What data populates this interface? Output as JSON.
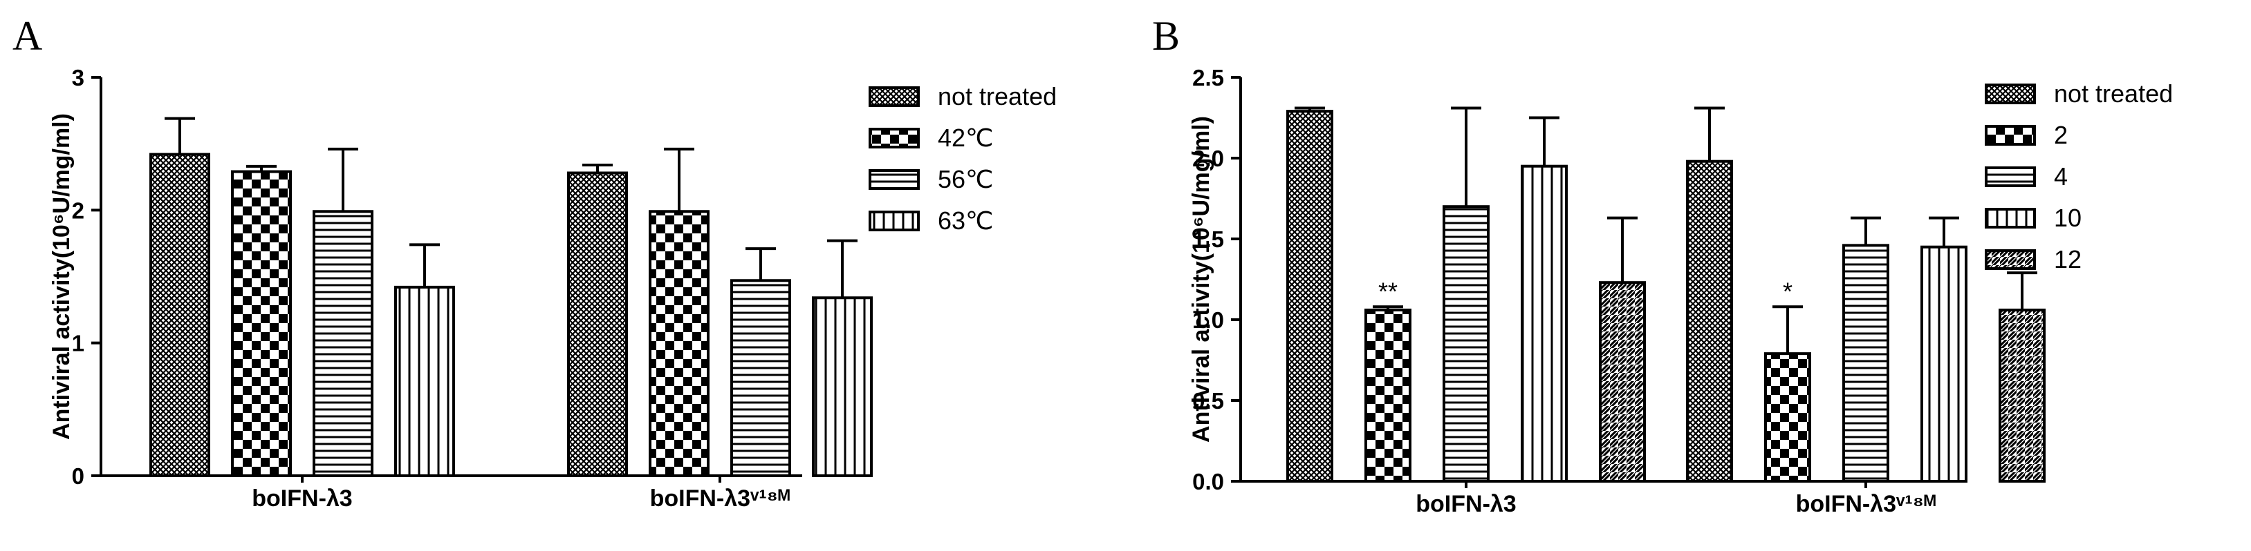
{
  "chart_data": [
    {
      "panel": "A",
      "type": "bar",
      "ylabel": "Antiviral activity(10⁶U/mg/ml)",
      "ylim": [
        0,
        3
      ],
      "yticks": [
        "0",
        "1",
        "2",
        "3"
      ],
      "categories": [
        "boIFN-λ3",
        "boIFN-λ3ᵛ¹⁸ᴹ"
      ],
      "legend_position": "right",
      "series": [
        {
          "name": "not treated",
          "pattern": "crosshatch",
          "values": [
            2.42,
            2.28
          ],
          "errors": [
            0.27,
            0.06
          ]
        },
        {
          "name": "42℃",
          "pattern": "checker",
          "values": [
            2.29,
            1.99
          ],
          "errors": [
            0.04,
            0.47
          ]
        },
        {
          "name": "56℃",
          "pattern": "hlines",
          "values": [
            1.99,
            1.47
          ],
          "errors": [
            0.47,
            0.24
          ]
        },
        {
          "name": "63℃",
          "pattern": "vlines",
          "values": [
            1.42,
            1.34
          ],
          "errors": [
            0.32,
            0.43
          ]
        }
      ],
      "annotations": []
    },
    {
      "panel": "B",
      "type": "bar",
      "ylabel": "Antiviral activity(10⁶U/mg/ml)",
      "ylim": [
        0,
        2.5
      ],
      "yticks": [
        "0.0",
        "0.5",
        "1.0",
        "1.5",
        "2.0",
        "2.5"
      ],
      "categories": [
        "boIFN-λ3",
        "boIFN-λ3ᵛ¹⁸ᴹ"
      ],
      "legend_position": "right",
      "series": [
        {
          "name": "not treated",
          "pattern": "crosshatch",
          "values": [
            2.29,
            1.98
          ],
          "errors": [
            0.02,
            0.33
          ]
        },
        {
          "name": "2",
          "pattern": "checker",
          "values": [
            1.06,
            0.79
          ],
          "errors": [
            0.02,
            0.29
          ]
        },
        {
          "name": "4",
          "pattern": "hlines",
          "values": [
            1.7,
            1.46
          ],
          "errors": [
            0.61,
            0.17
          ]
        },
        {
          "name": "10",
          "pattern": "vlines",
          "values": [
            1.95,
            1.45
          ],
          "errors": [
            0.3,
            0.18
          ]
        },
        {
          "name": "12",
          "pattern": "diag",
          "values": [
            1.23,
            1.06
          ],
          "errors": [
            0.4,
            0.23
          ]
        }
      ],
      "annotations": [
        {
          "category": 0,
          "series": 1,
          "text": "**"
        },
        {
          "category": 1,
          "series": 1,
          "text": "*"
        }
      ]
    }
  ]
}
